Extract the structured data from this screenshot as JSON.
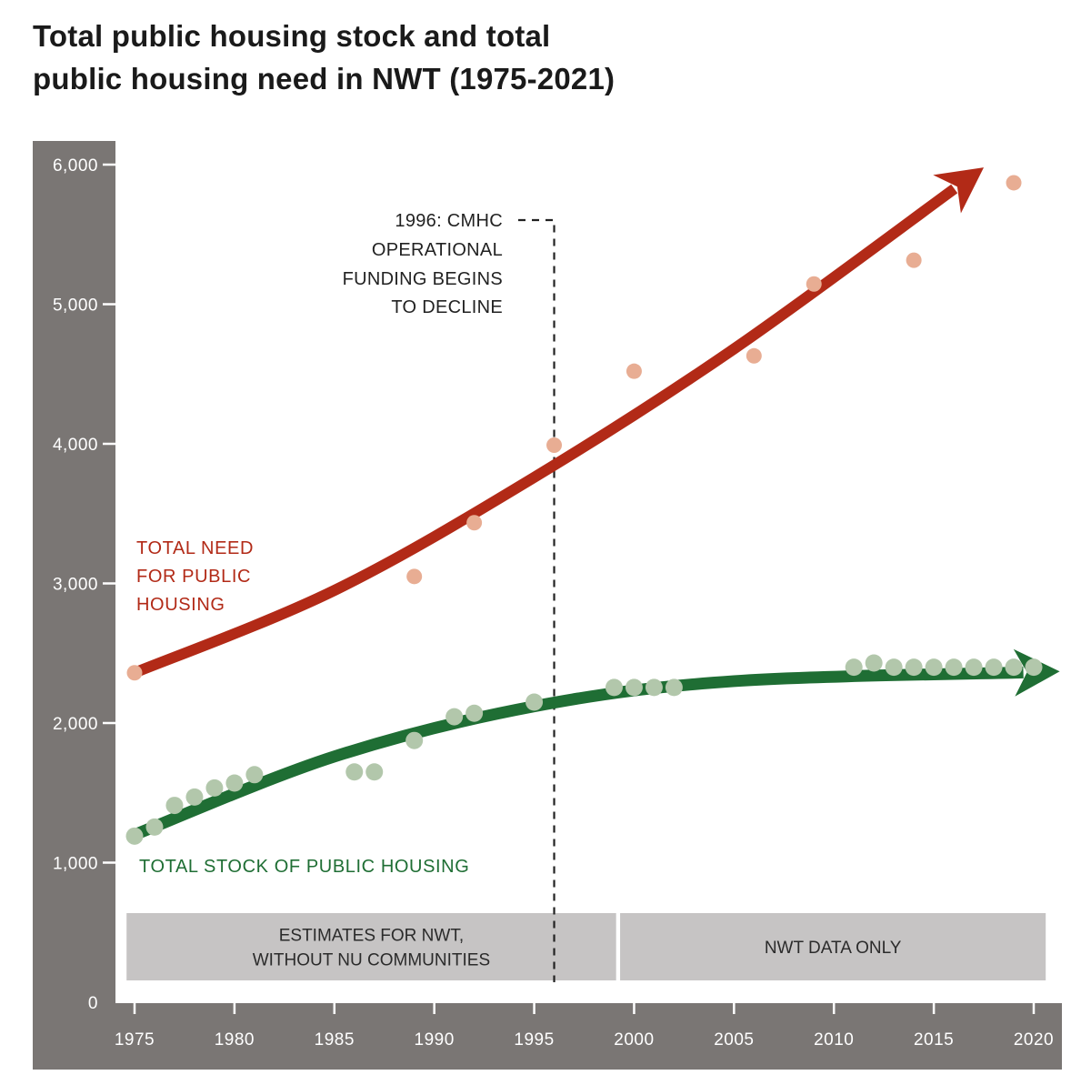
{
  "title_lines": [
    "Total public housing stock and total",
    "public housing need in NWT (1975-2021)"
  ],
  "colors": {
    "axis_bg": "#7a7674",
    "need_line": "#b22a17",
    "need_dots": "#e8ad93",
    "stock_line": "#1f6e34",
    "stock_dots": "#b2c7ab",
    "band_fill": "#c6c4c4",
    "annotation": "#222222"
  },
  "chart_data": {
    "type": "scatter",
    "title": "Total public housing stock and total public housing need in NWT (1975-2021)",
    "xlabel": "",
    "ylabel": "",
    "xlim": [
      1975,
      2020
    ],
    "ylim": [
      0,
      6000
    ],
    "grid": false,
    "x_ticks": [
      1975,
      1980,
      1985,
      1990,
      1995,
      2000,
      2005,
      2010,
      2015,
      2020
    ],
    "x_tick_labels": [
      "1975",
      "1980",
      "1985",
      "1990",
      "1995",
      "2000",
      "2005",
      "2010",
      "2015",
      "2020"
    ],
    "y_ticks": [
      0,
      1000,
      2000,
      3000,
      4000,
      5000,
      6000
    ],
    "y_tick_labels": [
      "0",
      "1,000",
      "2,000",
      "3,000",
      "4,000",
      "5,000",
      "6,000"
    ],
    "series": [
      {
        "name": "TOTAL NEED FOR PUBLIC HOUSING",
        "label_lines": [
          "TOTAL NEED",
          "FOR PUBLIC",
          "HOUSING"
        ],
        "points": [
          {
            "x": 1975,
            "y": 2360
          },
          {
            "x": 1989,
            "y": 3050
          },
          {
            "x": 1992,
            "y": 3435
          },
          {
            "x": 1996,
            "y": 3990
          },
          {
            "x": 2000,
            "y": 4520
          },
          {
            "x": 2006,
            "y": 4630
          },
          {
            "x": 2009,
            "y": 5145
          },
          {
            "x": 2014,
            "y": 5315
          },
          {
            "x": 2019,
            "y": 5870
          }
        ],
        "trend": [
          {
            "x": 1975,
            "y": 2360
          },
          {
            "x": 1985,
            "y": 2950
          },
          {
            "x": 1995,
            "y": 3760
          },
          {
            "x": 2005,
            "y": 4680
          },
          {
            "x": 2017.5,
            "y": 5980
          }
        ]
      },
      {
        "name": "TOTAL STOCK OF PUBLIC HOUSING",
        "label_lines": [
          "TOTAL STOCK OF PUBLIC HOUSING"
        ],
        "points": [
          {
            "x": 1975,
            "y": 1190
          },
          {
            "x": 1976,
            "y": 1255
          },
          {
            "x": 1977,
            "y": 1410
          },
          {
            "x": 1978,
            "y": 1470
          },
          {
            "x": 1979,
            "y": 1535
          },
          {
            "x": 1980,
            "y": 1570
          },
          {
            "x": 1981,
            "y": 1630
          },
          {
            "x": 1986,
            "y": 1650
          },
          {
            "x": 1987,
            "y": 1650
          },
          {
            "x": 1989,
            "y": 1875
          },
          {
            "x": 1991,
            "y": 2045
          },
          {
            "x": 1992,
            "y": 2070
          },
          {
            "x": 1995,
            "y": 2150
          },
          {
            "x": 1999,
            "y": 2255
          },
          {
            "x": 2000,
            "y": 2255
          },
          {
            "x": 2001,
            "y": 2255
          },
          {
            "x": 2002,
            "y": 2255
          },
          {
            "x": 2011,
            "y": 2400
          },
          {
            "x": 2012,
            "y": 2430
          },
          {
            "x": 2013,
            "y": 2400
          },
          {
            "x": 2014,
            "y": 2400
          },
          {
            "x": 2015,
            "y": 2400
          },
          {
            "x": 2016,
            "y": 2400
          },
          {
            "x": 2017,
            "y": 2400
          },
          {
            "x": 2018,
            "y": 2400
          },
          {
            "x": 2019,
            "y": 2400
          },
          {
            "x": 2020,
            "y": 2400
          }
        ],
        "trend": [
          {
            "x": 1975,
            "y": 1200
          },
          {
            "x": 1985,
            "y": 1760
          },
          {
            "x": 1995,
            "y": 2120
          },
          {
            "x": 2005,
            "y": 2300
          },
          {
            "x": 2021.3,
            "y": 2370
          }
        ]
      }
    ],
    "annotations": [
      {
        "x": 1996,
        "text_lines": [
          "1996: CMHC",
          "OPERATIONAL",
          "FUNDING BEGINS",
          "TO DECLINE"
        ],
        "style": "dashed-vertical"
      }
    ],
    "bands": [
      {
        "x_start": 1974.6,
        "x_end": 1999.1,
        "label_lines": [
          "ESTIMATES FOR NWT,",
          "WITHOUT NU COMMUNITIES"
        ]
      },
      {
        "x_start": 1999.3,
        "x_end": 2020.6,
        "label_lines": [
          "NWT DATA ONLY"
        ]
      }
    ]
  }
}
